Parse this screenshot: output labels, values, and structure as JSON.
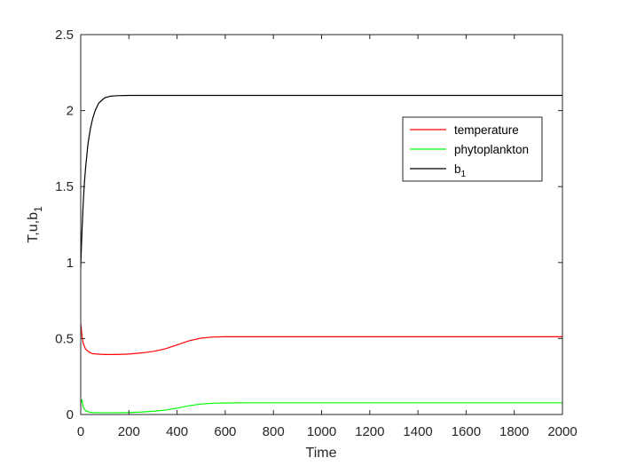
{
  "chart_data": {
    "type": "line",
    "xlabel": "Time",
    "ylabel": "T,u,b",
    "ylabel_subscript": "1",
    "xlim": [
      0,
      2000
    ],
    "ylim": [
      0,
      2.5
    ],
    "x_ticks": [
      0,
      200,
      400,
      600,
      800,
      1000,
      1200,
      1400,
      1600,
      1800,
      2000
    ],
    "y_ticks": [
      0,
      0.5,
      1,
      1.5,
      2,
      2.5
    ],
    "y_tick_labels": [
      "0",
      "0.5",
      "1",
      "1.5",
      "2",
      "2.5"
    ],
    "grid": false,
    "legend_position": "top-right",
    "series": [
      {
        "name": "temperature",
        "name_subscript": "",
        "color": "#ff0000",
        "x": [
          0,
          5,
          10,
          20,
          35,
          50,
          75,
          100,
          150,
          200,
          250,
          300,
          350,
          400,
          450,
          500,
          550,
          600,
          700,
          800,
          1000,
          1200,
          1400,
          1600,
          1800,
          2000
        ],
        "y": [
          0.6,
          0.52,
          0.47,
          0.43,
          0.41,
          0.4,
          0.397,
          0.395,
          0.395,
          0.398,
          0.405,
          0.415,
          0.432,
          0.458,
          0.485,
          0.503,
          0.51,
          0.512,
          0.512,
          0.512,
          0.512,
          0.512,
          0.512,
          0.512,
          0.512,
          0.512
        ]
      },
      {
        "name": "phytoplankton",
        "name_subscript": "",
        "color": "#00ff00",
        "x": [
          0,
          5,
          10,
          20,
          35,
          50,
          75,
          100,
          150,
          200,
          250,
          300,
          350,
          400,
          450,
          500,
          550,
          600,
          700,
          800,
          1000,
          1200,
          1400,
          1600,
          1800,
          2000
        ],
        "y": [
          0.08,
          0.095,
          0.05,
          0.025,
          0.016,
          0.013,
          0.012,
          0.012,
          0.012,
          0.013,
          0.016,
          0.021,
          0.029,
          0.042,
          0.058,
          0.069,
          0.074,
          0.076,
          0.077,
          0.077,
          0.077,
          0.077,
          0.077,
          0.077,
          0.077,
          0.077
        ]
      },
      {
        "name": "b",
        "name_subscript": "1",
        "color": "#000000",
        "x": [
          0,
          5,
          10,
          15,
          20,
          30,
          40,
          50,
          60,
          75,
          100,
          125,
          150,
          200,
          300,
          400,
          600,
          800,
          1000,
          1200,
          1400,
          1600,
          1800,
          2000
        ],
        "y": [
          0.97,
          1.2,
          1.38,
          1.52,
          1.62,
          1.78,
          1.88,
          1.95,
          2.0,
          2.05,
          2.085,
          2.095,
          2.098,
          2.1,
          2.1,
          2.1,
          2.1,
          2.1,
          2.1,
          2.1,
          2.1,
          2.1,
          2.1,
          2.1
        ]
      }
    ]
  }
}
